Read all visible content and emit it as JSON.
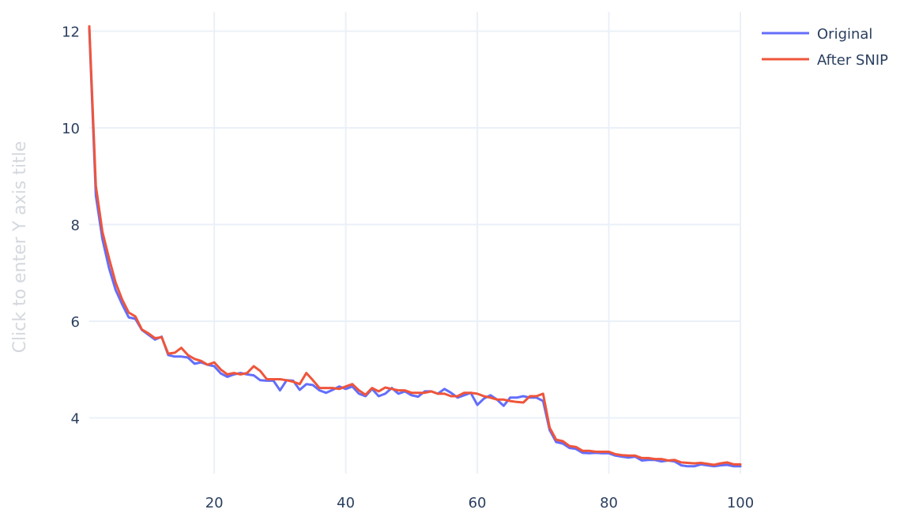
{
  "chart_data": {
    "type": "line",
    "title": "",
    "xlabel": "",
    "ylabel": "Click to enter Y axis title",
    "xlim": [
      1,
      100
    ],
    "ylim": [
      2.85,
      12.4
    ],
    "grid": true,
    "legend_position": "top-right",
    "x_ticks": [
      {
        "value": 20,
        "label": "20"
      },
      {
        "value": 40,
        "label": "40"
      },
      {
        "value": 60,
        "label": "60"
      },
      {
        "value": 80,
        "label": "80"
      },
      {
        "value": 100,
        "label": "100"
      }
    ],
    "y_ticks": [
      {
        "value": 4,
        "label": "4"
      },
      {
        "value": 6,
        "label": "6"
      },
      {
        "value": 8,
        "label": "8"
      },
      {
        "value": 10,
        "label": "10"
      },
      {
        "value": 12,
        "label": "12"
      }
    ],
    "x": [
      1,
      2,
      3,
      4,
      5,
      6,
      7,
      8,
      9,
      10,
      11,
      12,
      13,
      14,
      15,
      16,
      17,
      18,
      19,
      20,
      21,
      22,
      23,
      24,
      25,
      26,
      27,
      28,
      29,
      30,
      31,
      32,
      33,
      34,
      35,
      36,
      37,
      38,
      39,
      40,
      41,
      42,
      43,
      44,
      45,
      46,
      47,
      48,
      49,
      50,
      51,
      52,
      53,
      54,
      55,
      56,
      57,
      58,
      59,
      60,
      61,
      62,
      63,
      64,
      65,
      66,
      67,
      68,
      69,
      70,
      71,
      72,
      73,
      74,
      75,
      76,
      77,
      78,
      79,
      80,
      81,
      82,
      83,
      84,
      85,
      86,
      87,
      88,
      89,
      90,
      91,
      92,
      93,
      94,
      95,
      96,
      97,
      98,
      99,
      100
    ],
    "series": [
      {
        "name": "Original",
        "color": "#636efa",
        "values": [
          12.05,
          8.6,
          7.7,
          7.1,
          6.65,
          6.35,
          6.08,
          6.05,
          5.82,
          5.72,
          5.62,
          5.68,
          5.3,
          5.27,
          5.27,
          5.25,
          5.12,
          5.15,
          5.1,
          5.07,
          4.92,
          4.85,
          4.9,
          4.93,
          4.9,
          4.88,
          4.78,
          4.77,
          4.77,
          4.57,
          4.78,
          4.77,
          4.58,
          4.7,
          4.68,
          4.57,
          4.52,
          4.58,
          4.65,
          4.6,
          4.65,
          4.5,
          4.45,
          4.6,
          4.45,
          4.5,
          4.62,
          4.5,
          4.55,
          4.47,
          4.44,
          4.55,
          4.55,
          4.5,
          4.6,
          4.52,
          4.42,
          4.47,
          4.52,
          4.27,
          4.4,
          4.47,
          4.38,
          4.25,
          4.42,
          4.42,
          4.45,
          4.42,
          4.42,
          4.35,
          3.75,
          3.5,
          3.47,
          3.38,
          3.36,
          3.28,
          3.27,
          3.28,
          3.27,
          3.27,
          3.22,
          3.2,
          3.18,
          3.2,
          3.12,
          3.13,
          3.13,
          3.1,
          3.12,
          3.1,
          3.02,
          3,
          3.0,
          3.04,
          3.02,
          3.0,
          3.02,
          3.03,
          3.0,
          3.0
        ]
      },
      {
        "name": "After SNIP",
        "color": "#ef553b",
        "values": [
          12.1,
          8.8,
          7.85,
          7.3,
          6.8,
          6.45,
          6.18,
          6.1,
          5.83,
          5.75,
          5.65,
          5.67,
          5.33,
          5.35,
          5.45,
          5.3,
          5.22,
          5.18,
          5.1,
          5.15,
          5.0,
          4.9,
          4.93,
          4.9,
          4.93,
          5.07,
          4.97,
          4.8,
          4.8,
          4.8,
          4.78,
          4.75,
          4.7,
          4.93,
          4.78,
          4.62,
          4.62,
          4.62,
          4.6,
          4.65,
          4.7,
          4.57,
          4.48,
          4.62,
          4.55,
          4.63,
          4.6,
          4.57,
          4.57,
          4.52,
          4.52,
          4.52,
          4.55,
          4.5,
          4.5,
          4.45,
          4.45,
          4.52,
          4.52,
          4.5,
          4.45,
          4.42,
          4.38,
          4.38,
          4.35,
          4.33,
          4.32,
          4.45,
          4.45,
          4.5,
          3.8,
          3.55,
          3.52,
          3.42,
          3.4,
          3.32,
          3.32,
          3.3,
          3.3,
          3.3,
          3.25,
          3.23,
          3.22,
          3.22,
          3.17,
          3.17,
          3.15,
          3.15,
          3.12,
          3.13,
          3.08,
          3.07,
          3.06,
          3.07,
          3.05,
          3.03,
          3.06,
          3.08,
          3.04,
          3.04
        ]
      }
    ]
  }
}
